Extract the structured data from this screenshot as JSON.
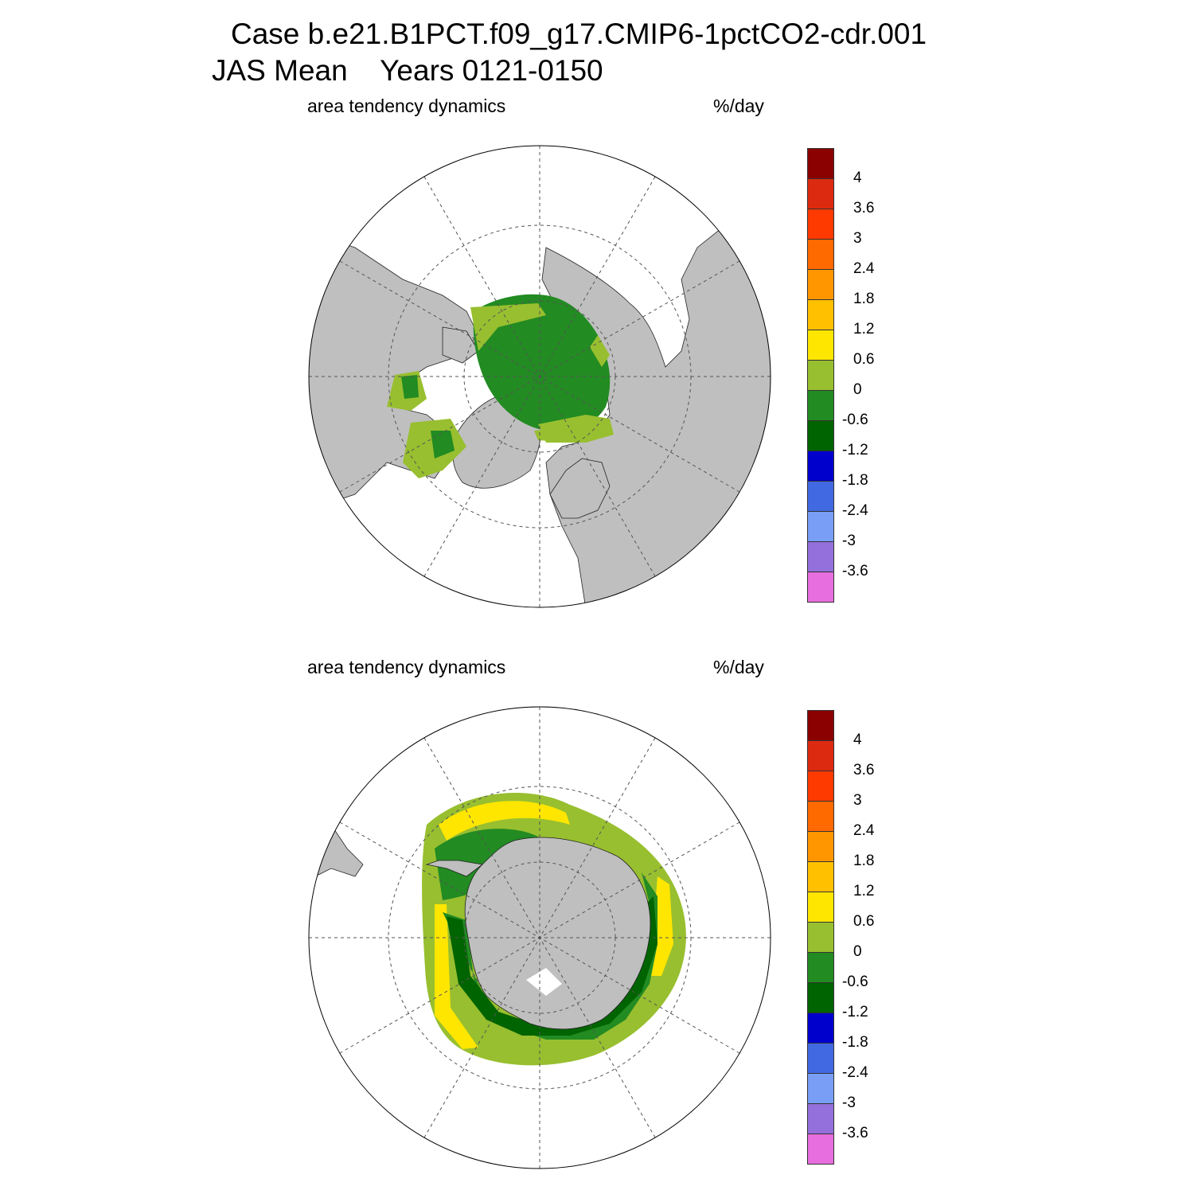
{
  "title": {
    "line1": "Case b.e21.B1PCT.f09_g17.CMIP6-1pctCO2-cdr.001",
    "line2": "JAS Mean    Years 0121-0150"
  },
  "panels": [
    {
      "id": "nh",
      "hemisphere": "north",
      "left_label": "area tendency dynamics",
      "right_label": "%/day"
    },
    {
      "id": "sh",
      "hemisphere": "south",
      "left_label": "area tendency dynamics",
      "right_label": "%/day"
    }
  ],
  "colorbar": {
    "colors": [
      "#8b0000",
      "#dc2a10",
      "#ff3a00",
      "#ff6a00",
      "#ff9600",
      "#ffc000",
      "#ffe600",
      "#98bf2f",
      "#228b22",
      "#006400",
      "#0000cd",
      "#4169e1",
      "#789ff5",
      "#9370db",
      "#e66ede"
    ],
    "tick_labels": [
      "4",
      "3.6",
      "3",
      "2.4",
      "1.8",
      "1.2",
      "0.6",
      "0",
      "-0.6",
      "-1.2",
      "-1.8",
      "-2.4",
      "-3",
      "-3.6"
    ]
  },
  "map_colors": {
    "land": "#bfbfbf",
    "ocean": "#ffffff",
    "grid": "#555555"
  }
}
